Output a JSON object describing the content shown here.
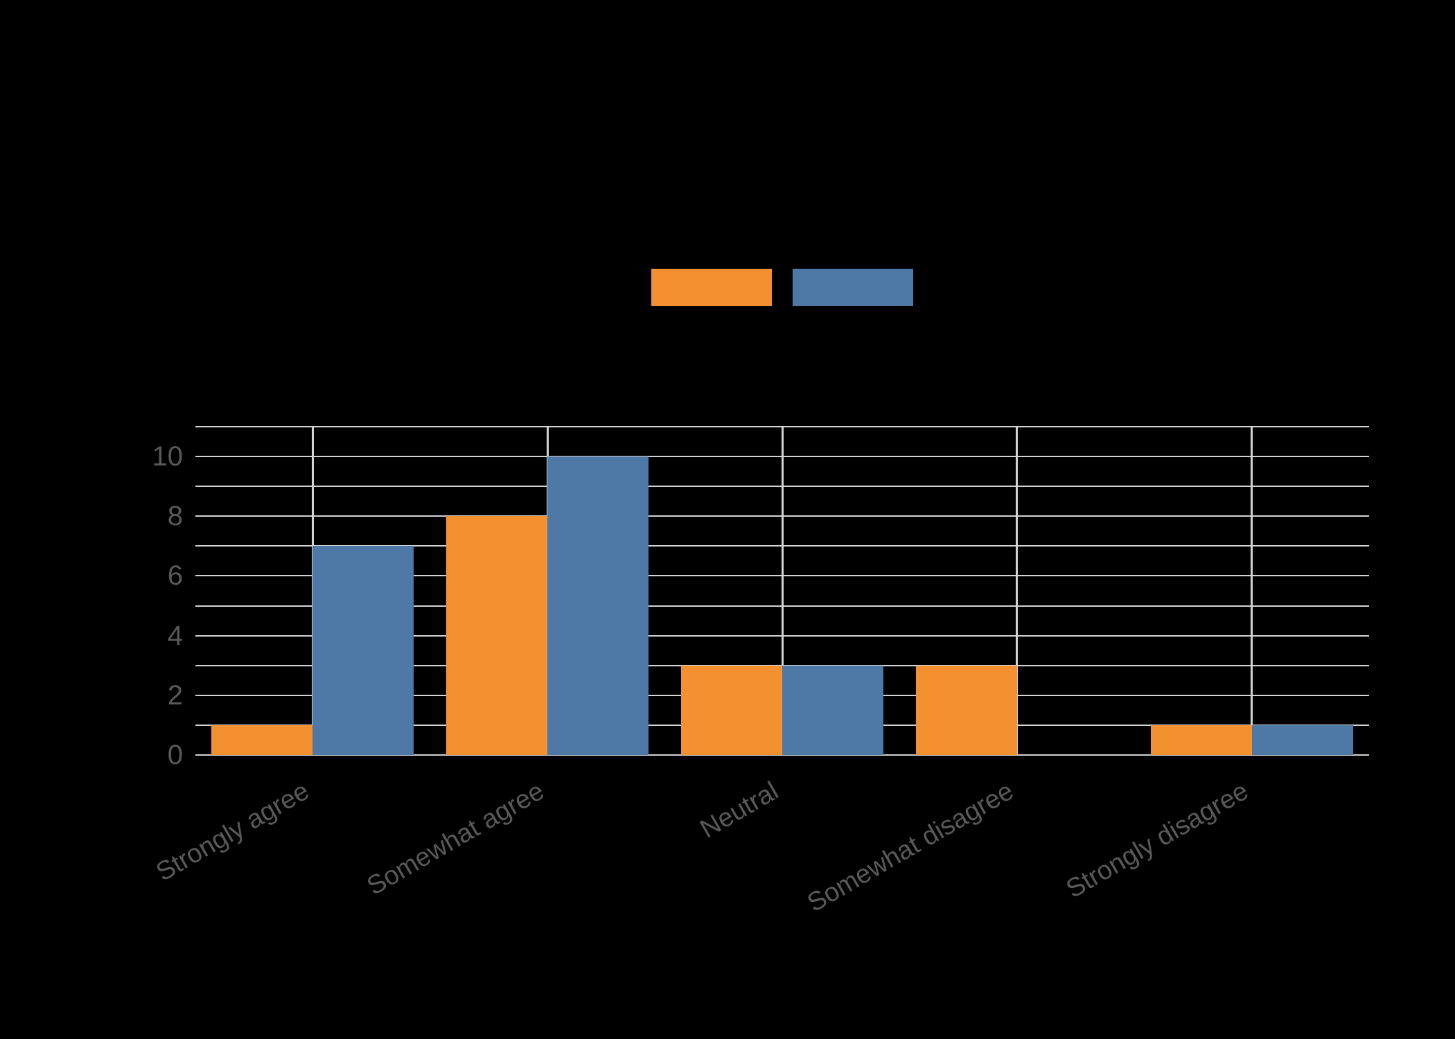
{
  "chart_data": {
    "type": "bar",
    "title": "",
    "xlabel": "",
    "ylabel": "",
    "categories": [
      "Strongly agree",
      "Somewhat agree",
      "Neutral",
      "Somewhat disagree",
      "Strongly disagree"
    ],
    "series": [
      {
        "name": "",
        "color": "#f39030",
        "values": [
          1,
          8,
          3,
          3,
          1
        ]
      },
      {
        "name": "",
        "color": "#4e79a7",
        "values": [
          7,
          10,
          3,
          0,
          1
        ]
      }
    ],
    "ylim": [
      0,
      11
    ],
    "yticks": [
      0,
      2,
      4,
      6,
      8,
      10
    ],
    "grid": true,
    "legend_position": "top-center",
    "background": "#000000"
  },
  "yticks_labels": [
    "0",
    "2",
    "4",
    "6",
    "8",
    "10"
  ],
  "colors": {
    "series1": "#f39030",
    "series2": "#4e79a7",
    "grid": "#d3d3d3",
    "tick_text": "#595959"
  }
}
